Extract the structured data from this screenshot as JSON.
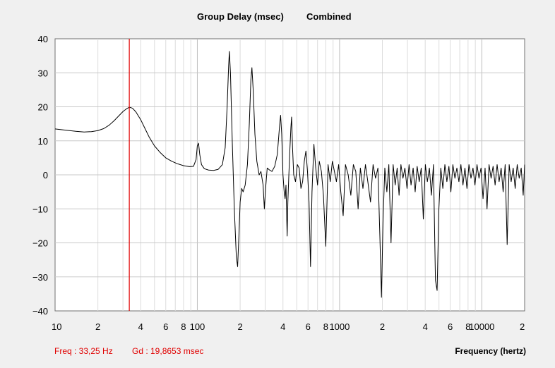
{
  "chart_data": {
    "type": "line",
    "title": "Group Delay (msec)",
    "subtitle": "Combined",
    "xlabel": "Frequency (hertz)",
    "ylabel": "",
    "x_scale": "log",
    "xlim": [
      10,
      20000
    ],
    "ylim": [
      -40,
      40
    ],
    "grid": true,
    "y_ticks": [
      "40",
      "30",
      "20",
      "10",
      "0",
      "−10",
      "−20",
      "−30",
      "−40"
    ],
    "x_ticks": [
      {
        "value": 10,
        "label": "10"
      },
      {
        "value": 20,
        "label": "2"
      },
      {
        "value": 40,
        "label": "4"
      },
      {
        "value": 60,
        "label": "6"
      },
      {
        "value": 80,
        "label": "8"
      },
      {
        "value": 100,
        "label": "100"
      },
      {
        "value": 200,
        "label": "2"
      },
      {
        "value": 400,
        "label": "4"
      },
      {
        "value": 600,
        "label": "6"
      },
      {
        "value": 800,
        "label": "8"
      },
      {
        "value": 1000,
        "label": "1000"
      },
      {
        "value": 2000,
        "label": "2"
      },
      {
        "value": 4000,
        "label": "4"
      },
      {
        "value": 6000,
        "label": "6"
      },
      {
        "value": 8000,
        "label": "8"
      },
      {
        "value": 10000,
        "label": "10000"
      },
      {
        "value": 20000,
        "label": "2"
      }
    ],
    "cursor": {
      "freq": 33.25,
      "color": "#e00000"
    },
    "series": [
      {
        "color": "#000000",
        "points": [
          [
            10,
            13.5
          ],
          [
            12,
            13.1
          ],
          [
            14,
            12.8
          ],
          [
            16,
            12.6
          ],
          [
            18,
            12.7
          ],
          [
            20,
            13.0
          ],
          [
            22,
            13.6
          ],
          [
            24,
            14.6
          ],
          [
            26,
            15.9
          ],
          [
            28,
            17.3
          ],
          [
            30,
            18.6
          ],
          [
            32,
            19.5
          ],
          [
            33.25,
            19.87
          ],
          [
            35,
            19.6
          ],
          [
            37,
            18.5
          ],
          [
            40,
            16.2
          ],
          [
            43,
            13.5
          ],
          [
            46,
            11.0
          ],
          [
            50,
            8.5
          ],
          [
            55,
            6.5
          ],
          [
            60,
            5.0
          ],
          [
            66,
            4.0
          ],
          [
            72,
            3.3
          ],
          [
            80,
            2.7
          ],
          [
            88,
            2.4
          ],
          [
            94,
            2.5
          ],
          [
            98,
            4.5
          ],
          [
            100,
            8.5
          ],
          [
            102,
            9.3
          ],
          [
            104,
            6.0
          ],
          [
            107,
            3.0
          ],
          [
            112,
            1.8
          ],
          [
            120,
            1.4
          ],
          [
            130,
            1.3
          ],
          [
            140,
            1.6
          ],
          [
            150,
            3.0
          ],
          [
            157,
            8.0
          ],
          [
            162,
            20.0
          ],
          [
            166,
            32.0
          ],
          [
            168,
            36.3
          ],
          [
            171,
            30.0
          ],
          [
            176,
            10.0
          ],
          [
            182,
            -10.0
          ],
          [
            188,
            -24.0
          ],
          [
            192,
            -27.0
          ],
          [
            196,
            -18.0
          ],
          [
            200,
            -8.0
          ],
          [
            205,
            -4.0
          ],
          [
            210,
            -5.0
          ],
          [
            217,
            -3.0
          ],
          [
            225,
            3.0
          ],
          [
            232,
            15.0
          ],
          [
            238,
            28.0
          ],
          [
            242,
            31.5
          ],
          [
            247,
            25.0
          ],
          [
            254,
            12.0
          ],
          [
            262,
            4.0
          ],
          [
            272,
            0.0
          ],
          [
            280,
            1.0
          ],
          [
            290,
            -3.0
          ],
          [
            296,
            -10.0
          ],
          [
            302,
            -4.0
          ],
          [
            310,
            2.0
          ],
          [
            320,
            1.5
          ],
          [
            335,
            1.0
          ],
          [
            350,
            2.5
          ],
          [
            365,
            6.0
          ],
          [
            378,
            14.0
          ],
          [
            385,
            17.5
          ],
          [
            392,
            12.0
          ],
          [
            400,
            0.0
          ],
          [
            408,
            -5.0
          ],
          [
            414,
            -7.0
          ],
          [
            420,
            -3.0
          ],
          [
            428,
            -18.0
          ],
          [
            433,
            -8.0
          ],
          [
            440,
            0.0
          ],
          [
            448,
            8.0
          ],
          [
            455,
            14.0
          ],
          [
            460,
            17.0
          ],
          [
            467,
            8.0
          ],
          [
            476,
            0.0
          ],
          [
            490,
            -2.0
          ],
          [
            505,
            3.0
          ],
          [
            520,
            2.0
          ],
          [
            535,
            -4.0
          ],
          [
            550,
            -2.0
          ],
          [
            565,
            4.0
          ],
          [
            580,
            7.0
          ],
          [
            595,
            1.0
          ],
          [
            610,
            -8.0
          ],
          [
            625,
            -27.0
          ],
          [
            640,
            -5.0
          ],
          [
            660,
            9.0
          ],
          [
            680,
            2.0
          ],
          [
            700,
            -3.0
          ],
          [
            720,
            4.0
          ],
          [
            745,
            1.0
          ],
          [
            770,
            -6.0
          ],
          [
            800,
            -21.0
          ],
          [
            830,
            3.0
          ],
          [
            860,
            -2.0
          ],
          [
            890,
            4.0
          ],
          [
            920,
            1.0
          ],
          [
            950,
            -2.0
          ],
          [
            985,
            3.0
          ],
          [
            1020,
            -5.0
          ],
          [
            1060,
            -12.0
          ],
          [
            1100,
            3.0
          ],
          [
            1150,
            0.0
          ],
          [
            1200,
            -6.0
          ],
          [
            1250,
            3.0
          ],
          [
            1300,
            1.0
          ],
          [
            1350,
            -10.0
          ],
          [
            1400,
            2.0
          ],
          [
            1460,
            -4.0
          ],
          [
            1520,
            3.0
          ],
          [
            1580,
            -2.0
          ],
          [
            1650,
            -8.0
          ],
          [
            1720,
            3.0
          ],
          [
            1790,
            -1.0
          ],
          [
            1860,
            2.0
          ],
          [
            1920,
            -18.0
          ],
          [
            1970,
            -36.0
          ],
          [
            2020,
            -14.0
          ],
          [
            2080,
            2.0
          ],
          [
            2150,
            -5.0
          ],
          [
            2220,
            3.0
          ],
          [
            2300,
            -20.0
          ],
          [
            2380,
            3.0
          ],
          [
            2460,
            -3.0
          ],
          [
            2540,
            2.0
          ],
          [
            2620,
            -6.0
          ],
          [
            2700,
            3.0
          ],
          [
            2790,
            -1.0
          ],
          [
            2880,
            2.0
          ],
          [
            2980,
            -4.0
          ],
          [
            3080,
            3.0
          ],
          [
            3180,
            -3.0
          ],
          [
            3290,
            2.0
          ],
          [
            3400,
            -5.0
          ],
          [
            3510,
            2.5
          ],
          [
            3630,
            -2.0
          ],
          [
            3750,
            2.0
          ],
          [
            3880,
            -13.0
          ],
          [
            4010,
            3.0
          ],
          [
            4140,
            -2.0
          ],
          [
            4280,
            2.0
          ],
          [
            4420,
            -6.0
          ],
          [
            4570,
            3.0
          ],
          [
            4720,
            -31.0
          ],
          [
            4850,
            -34.0
          ],
          [
            4990,
            -10.0
          ],
          [
            5150,
            2.0
          ],
          [
            5320,
            -4.0
          ],
          [
            5500,
            3.0
          ],
          [
            5680,
            -2.0
          ],
          [
            5870,
            2.5
          ],
          [
            6060,
            -5.0
          ],
          [
            6260,
            3.0
          ],
          [
            6470,
            -1.0
          ],
          [
            6680,
            2.0
          ],
          [
            6900,
            -2.0
          ],
          [
            7130,
            3.0
          ],
          [
            7370,
            -3.0
          ],
          [
            7610,
            2.0
          ],
          [
            7860,
            -4.0
          ],
          [
            8120,
            3.0
          ],
          [
            8390,
            -1.0
          ],
          [
            8670,
            2.0
          ],
          [
            8950,
            -3.0
          ],
          [
            9250,
            3.0
          ],
          [
            9550,
            -1.0
          ],
          [
            9870,
            2.0
          ],
          [
            10200,
            -7.0
          ],
          [
            10540,
            2.0
          ],
          [
            10880,
            -10.0
          ],
          [
            11240,
            3.0
          ],
          [
            11620,
            -1.0
          ],
          [
            12000,
            2.5
          ],
          [
            12400,
            -3.0
          ],
          [
            12810,
            3.0
          ],
          [
            13230,
            -2.0
          ],
          [
            13670,
            2.0
          ],
          [
            14120,
            -5.0
          ],
          [
            14590,
            3.0
          ],
          [
            15070,
            -20.5
          ],
          [
            15570,
            3.0
          ],
          [
            16080,
            -2.0
          ],
          [
            16610,
            2.0
          ],
          [
            17160,
            -4.0
          ],
          [
            17730,
            3.0
          ],
          [
            18310,
            -1.0
          ],
          [
            18920,
            2.0
          ],
          [
            19540,
            -6.0
          ],
          [
            20000,
            3.0
          ]
        ]
      }
    ]
  },
  "readout": {
    "freq_text": "Freq : 33,25 Hz",
    "gd_text": "Gd : 19,8653 msec"
  }
}
